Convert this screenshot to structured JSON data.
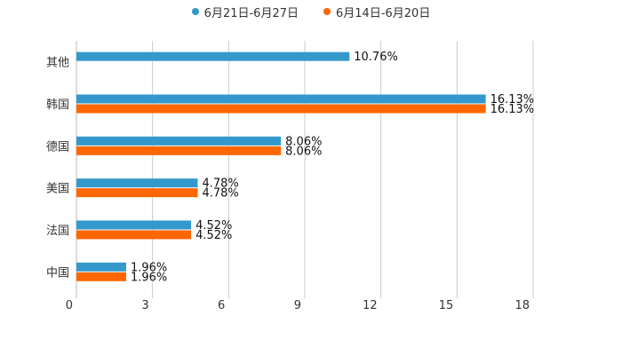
{
  "chart_data": {
    "type": "bar",
    "orientation": "horizontal",
    "title": "",
    "xlabel": "",
    "ylabel": "",
    "categories": [
      "其他",
      "韩国",
      "德国",
      "美国",
      "法国",
      "中国"
    ],
    "series": [
      {
        "name": "6月21日-6月27日",
        "color": "#3399cc",
        "values": [
          10.76,
          16.13,
          8.06,
          4.78,
          4.52,
          1.96
        ],
        "labels": [
          "10.76%",
          "16.13%",
          "8.06%",
          "4.78%",
          "4.52%",
          "1.96%"
        ]
      },
      {
        "name": "6月14日-6月20日",
        "color": "#ff6600",
        "values": [
          null,
          16.13,
          8.06,
          4.78,
          4.52,
          1.96
        ],
        "labels": [
          "",
          "16.13%",
          "8.06%",
          "4.78%",
          "4.52%",
          "1.96%"
        ]
      }
    ],
    "xlim": [
      0,
      18
    ],
    "xticks": [
      0,
      3,
      6,
      9,
      12,
      15,
      18
    ],
    "grid": true,
    "legend": "top-center"
  }
}
